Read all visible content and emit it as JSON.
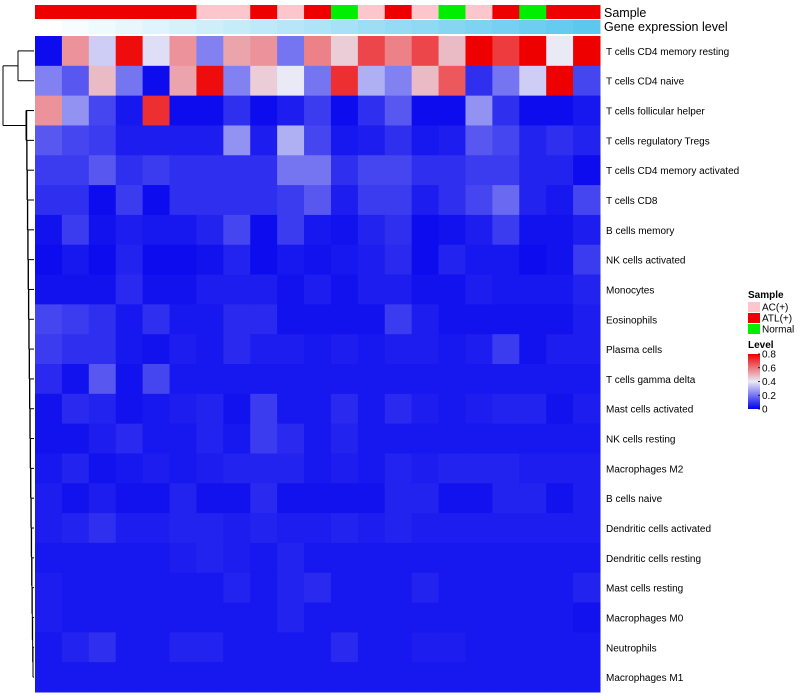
{
  "chart_data": {
    "type": "heatmap",
    "annotation_rows": [
      "Sample",
      "Gene expression level"
    ],
    "sample_groups": [
      "ATL(+)",
      "ATL(+)",
      "ATL(+)",
      "ATL(+)",
      "ATL(+)",
      "ATL(+)",
      "AC(+)",
      "AC(+)",
      "ATL(+)",
      "AC(+)",
      "ATL(+)",
      "Normal",
      "AC(+)",
      "ATL(+)",
      "AC(+)",
      "Normal",
      "AC(+)",
      "ATL(+)",
      "Normal",
      "ATL(+)",
      "ATL(+)"
    ],
    "expression_gradient": {
      "from": "#ffffff",
      "to": "#5dc8ee"
    },
    "row_labels": [
      "T cells CD4 memory resting",
      "T cells CD4 naive",
      "T cells follicular helper",
      "T cells regulatory  Tregs",
      "T cells CD4 memory activated",
      "T cells CD8",
      "B cells memory",
      "NK cells activated",
      "Monocytes",
      "Eosinophils",
      "Plasma cells",
      "T cells gamma delta",
      "Mast cells activated",
      "NK cells resting",
      "Macrophages M2",
      "B cells naive",
      "Dendritic cells activated",
      "Dendritic cells resting",
      "Mast cells resting",
      "Macrophages M0",
      "Neutrophils",
      "Macrophages M1"
    ],
    "values": [
      [
        0.02,
        0.55,
        0.35,
        0.78,
        0.38,
        0.55,
        0.22,
        0.52,
        0.55,
        0.2,
        0.58,
        0.45,
        0.68,
        0.58,
        0.68,
        0.48,
        0.8,
        0.7,
        0.8,
        0.4,
        0.8
      ],
      [
        0.22,
        0.15,
        0.48,
        0.2,
        0.02,
        0.52,
        0.78,
        0.22,
        0.45,
        0.4,
        0.2,
        0.72,
        0.3,
        0.22,
        0.48,
        0.65,
        0.08,
        0.2,
        0.35,
        0.8,
        0.12
      ],
      [
        0.55,
        0.25,
        0.12,
        0.04,
        0.72,
        0.02,
        0.02,
        0.08,
        0.02,
        0.05,
        0.1,
        0.02,
        0.08,
        0.15,
        0.02,
        0.02,
        0.25,
        0.08,
        0.02,
        0.02,
        0.04
      ],
      [
        0.15,
        0.12,
        0.1,
        0.05,
        0.05,
        0.05,
        0.05,
        0.25,
        0.05,
        0.3,
        0.12,
        0.04,
        0.05,
        0.08,
        0.04,
        0.05,
        0.15,
        0.12,
        0.06,
        0.08,
        0.06
      ],
      [
        0.1,
        0.1,
        0.15,
        0.08,
        0.1,
        0.08,
        0.08,
        0.08,
        0.08,
        0.2,
        0.2,
        0.08,
        0.12,
        0.12,
        0.08,
        0.08,
        0.1,
        0.1,
        0.06,
        0.06,
        0.02
      ],
      [
        0.08,
        0.08,
        0.02,
        0.1,
        0.02,
        0.08,
        0.08,
        0.08,
        0.08,
        0.1,
        0.15,
        0.05,
        0.1,
        0.1,
        0.05,
        0.08,
        0.12,
        0.18,
        0.06,
        0.04,
        0.12
      ],
      [
        0.03,
        0.1,
        0.03,
        0.05,
        0.04,
        0.04,
        0.06,
        0.12,
        0.02,
        0.1,
        0.04,
        0.03,
        0.06,
        0.08,
        0.02,
        0.03,
        0.05,
        0.1,
        0.03,
        0.03,
        0.05
      ],
      [
        0.02,
        0.04,
        0.02,
        0.06,
        0.02,
        0.02,
        0.03,
        0.06,
        0.02,
        0.04,
        0.03,
        0.04,
        0.05,
        0.07,
        0.02,
        0.06,
        0.04,
        0.04,
        0.02,
        0.03,
        0.1
      ],
      [
        0.03,
        0.03,
        0.03,
        0.07,
        0.03,
        0.03,
        0.05,
        0.05,
        0.05,
        0.03,
        0.05,
        0.03,
        0.05,
        0.05,
        0.03,
        0.03,
        0.05,
        0.04,
        0.04,
        0.04,
        0.06
      ],
      [
        0.12,
        0.1,
        0.08,
        0.04,
        0.08,
        0.04,
        0.04,
        0.07,
        0.07,
        0.03,
        0.03,
        0.03,
        0.03,
        0.1,
        0.05,
        0.03,
        0.03,
        0.03,
        0.03,
        0.03,
        0.05
      ],
      [
        0.1,
        0.08,
        0.08,
        0.04,
        0.03,
        0.05,
        0.04,
        0.07,
        0.05,
        0.05,
        0.04,
        0.05,
        0.04,
        0.05,
        0.05,
        0.04,
        0.05,
        0.1,
        0.03,
        0.05,
        0.05
      ],
      [
        0.07,
        0.03,
        0.15,
        0.03,
        0.12,
        0.04,
        0.04,
        0.04,
        0.04,
        0.04,
        0.04,
        0.04,
        0.04,
        0.04,
        0.04,
        0.04,
        0.04,
        0.04,
        0.04,
        0.04,
        0.04
      ],
      [
        0.03,
        0.07,
        0.06,
        0.03,
        0.04,
        0.05,
        0.06,
        0.03,
        0.1,
        0.04,
        0.04,
        0.07,
        0.04,
        0.07,
        0.05,
        0.04,
        0.05,
        0.06,
        0.06,
        0.03,
        0.05
      ],
      [
        0.03,
        0.03,
        0.05,
        0.07,
        0.04,
        0.04,
        0.06,
        0.04,
        0.1,
        0.07,
        0.04,
        0.06,
        0.04,
        0.04,
        0.04,
        0.04,
        0.04,
        0.04,
        0.04,
        0.04,
        0.04
      ],
      [
        0.04,
        0.06,
        0.03,
        0.04,
        0.05,
        0.04,
        0.05,
        0.06,
        0.06,
        0.06,
        0.04,
        0.05,
        0.04,
        0.06,
        0.05,
        0.06,
        0.06,
        0.06,
        0.05,
        0.05,
        0.05
      ],
      [
        0.05,
        0.03,
        0.05,
        0.03,
        0.03,
        0.06,
        0.03,
        0.03,
        0.07,
        0.03,
        0.03,
        0.03,
        0.03,
        0.06,
        0.06,
        0.03,
        0.03,
        0.06,
        0.06,
        0.03,
        0.05
      ],
      [
        0.05,
        0.06,
        0.08,
        0.05,
        0.05,
        0.06,
        0.06,
        0.05,
        0.06,
        0.05,
        0.05,
        0.06,
        0.05,
        0.06,
        0.05,
        0.05,
        0.05,
        0.05,
        0.05,
        0.05,
        0.05
      ],
      [
        0.04,
        0.04,
        0.04,
        0.04,
        0.04,
        0.05,
        0.06,
        0.05,
        0.04,
        0.06,
        0.04,
        0.04,
        0.04,
        0.04,
        0.04,
        0.04,
        0.04,
        0.04,
        0.04,
        0.04,
        0.04
      ],
      [
        0.05,
        0.04,
        0.04,
        0.04,
        0.04,
        0.04,
        0.04,
        0.06,
        0.04,
        0.06,
        0.07,
        0.04,
        0.04,
        0.04,
        0.06,
        0.04,
        0.04,
        0.04,
        0.04,
        0.04,
        0.06
      ],
      [
        0.05,
        0.04,
        0.04,
        0.04,
        0.04,
        0.04,
        0.04,
        0.04,
        0.04,
        0.06,
        0.04,
        0.04,
        0.04,
        0.04,
        0.04,
        0.04,
        0.04,
        0.04,
        0.04,
        0.04,
        0.03
      ],
      [
        0.04,
        0.06,
        0.08,
        0.04,
        0.04,
        0.06,
        0.06,
        0.04,
        0.04,
        0.04,
        0.04,
        0.07,
        0.04,
        0.04,
        0.05,
        0.05,
        0.04,
        0.04,
        0.04,
        0.04,
        0.04
      ],
      [
        0.04,
        0.04,
        0.04,
        0.04,
        0.04,
        0.04,
        0.04,
        0.04,
        0.04,
        0.04,
        0.04,
        0.04,
        0.04,
        0.04,
        0.04,
        0.04,
        0.04,
        0.04,
        0.04,
        0.04,
        0.04
      ]
    ],
    "color_scale": {
      "range": [
        0,
        0.8
      ],
      "stops": [
        {
          "value": 0,
          "color": "#0000ee"
        },
        {
          "value": 0.4,
          "color": "#eaeaf6"
        },
        {
          "value": 0.8,
          "color": "#ee0000"
        }
      ]
    },
    "legend": {
      "sample_title": "Sample",
      "sample_entries": [
        {
          "label": "AC(+)",
          "color": "#fcc6cc"
        },
        {
          "label": "ATL(+)",
          "color": "#ee0000"
        },
        {
          "label": "Normal",
          "color": "#00ee00"
        }
      ],
      "level_title": "Level",
      "level_ticks": [
        "0.8",
        "0.6",
        "0.4",
        "0.2",
        "0"
      ],
      "level_tick_values": [
        0.8,
        0.6,
        0.4,
        0.2,
        0
      ]
    }
  }
}
